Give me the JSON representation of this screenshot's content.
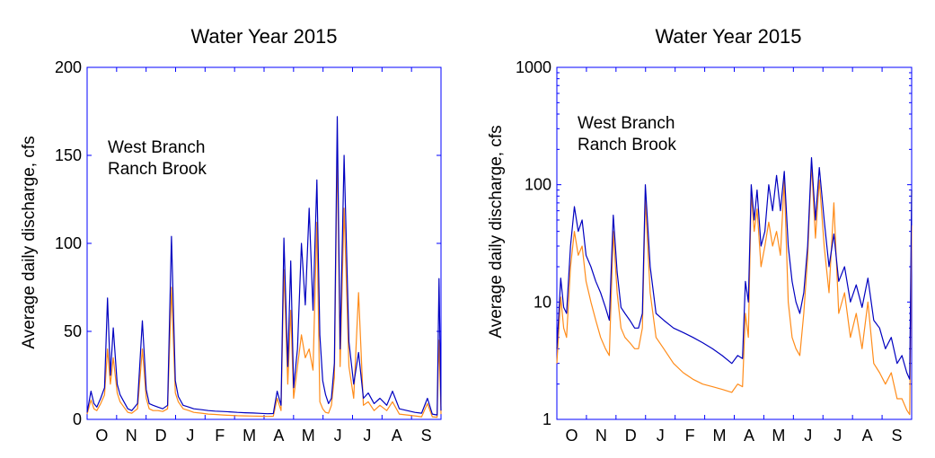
{
  "colors": {
    "west_branch": "#0000c0",
    "ranch_brook": "#ff8c1a",
    "axes": "#0000ff"
  },
  "chart_data": [
    {
      "type": "line",
      "title": "Water Year 2015",
      "ylabel": "Average daily discharge, cfs",
      "yscale": "linear",
      "ylim": [
        0,
        200
      ],
      "yticks": [
        0,
        50,
        100,
        150,
        200
      ],
      "xlim": [
        0,
        365
      ],
      "xtick_labels": [
        "O",
        "N",
        "D",
        "J",
        "F",
        "M",
        "A",
        "M",
        "J",
        "J",
        "A",
        "S"
      ],
      "legend": "upper-left",
      "series": [
        {
          "name": "West Branch",
          "color_key": "west_branch",
          "x": [
            0,
            4,
            7,
            10,
            14,
            18,
            21,
            24,
            27,
            31,
            34,
            38,
            42,
            46,
            52,
            57,
            61,
            64,
            68,
            73,
            78,
            83,
            87,
            91,
            94,
            99,
            105,
            110,
            118,
            125,
            132,
            140,
            147,
            155,
            163,
            171,
            179,
            186,
            192,
            196,
            200,
            203,
            207,
            210,
            213,
            217,
            221,
            225,
            229,
            233,
            237,
            240,
            243,
            246,
            249,
            252,
            255,
            258,
            261,
            265,
            270,
            275,
            280,
            285,
            290,
            296,
            302,
            309,
            315,
            322,
            330,
            338,
            345,
            351,
            356,
            361,
            363,
            365
          ],
          "y": [
            4,
            16,
            9,
            7,
            12,
            18,
            69,
            25,
            52,
            20,
            14,
            10,
            6,
            5,
            9,
            56,
            17,
            9,
            8,
            7,
            6,
            8,
            104,
            22,
            13,
            8,
            7,
            6,
            5.5,
            5,
            4.7,
            4.5,
            4.3,
            4,
            3.8,
            3.6,
            3.4,
            3.2,
            3.3,
            16,
            8,
            103,
            30,
            90,
            18,
            40,
            100,
            65,
            120,
            62,
            136,
            48,
            22,
            14,
            9,
            12,
            32,
            172,
            40,
            150,
            44,
            20,
            38,
            12,
            15,
            9,
            12,
            8,
            16,
            6,
            5,
            4,
            3.5,
            12,
            3,
            2.5,
            80,
            5
          ]
        },
        {
          "name": "Ranch Brook",
          "color_key": "ranch_brook",
          "x": [
            0,
            4,
            7,
            10,
            14,
            18,
            21,
            24,
            27,
            31,
            34,
            38,
            42,
            46,
            52,
            57,
            61,
            64,
            68,
            73,
            78,
            83,
            87,
            91,
            94,
            99,
            105,
            110,
            118,
            125,
            132,
            140,
            147,
            155,
            163,
            171,
            179,
            186,
            192,
            196,
            200,
            203,
            207,
            210,
            213,
            217,
            221,
            225,
            229,
            233,
            237,
            240,
            243,
            246,
            249,
            252,
            255,
            258,
            261,
            265,
            270,
            275,
            280,
            285,
            290,
            296,
            302,
            309,
            315,
            322,
            330,
            338,
            345,
            351,
            356,
            361,
            363,
            365
          ],
          "y": [
            3,
            11,
            6,
            5,
            9,
            14,
            40,
            20,
            35,
            15,
            10,
            7,
            4,
            3.5,
            6,
            40,
            12,
            6,
            5,
            5,
            4.5,
            6,
            75,
            15,
            10,
            6,
            5,
            4,
            3.5,
            3,
            2.8,
            2.5,
            2.3,
            2.1,
            2,
            1.9,
            1.8,
            1.7,
            1.8,
            12,
            5,
            85,
            20,
            62,
            12,
            30,
            48,
            35,
            40,
            28,
            112,
            10,
            6,
            4,
            3.5,
            8,
            24,
            155,
            30,
            120,
            30,
            12,
            72,
            8,
            10,
            5,
            8,
            5,
            10,
            3,
            2.5,
            2,
            1.5,
            9,
            1.5,
            1.2,
            45,
            3
          ]
        }
      ]
    },
    {
      "type": "line",
      "title": "Water Year 2015",
      "ylabel": "Average daily discharge, cfs",
      "yscale": "log",
      "ylim": [
        1,
        1000
      ],
      "yticks": [
        1,
        10,
        100,
        1000
      ],
      "xlim": [
        0,
        365
      ],
      "xtick_labels": [
        "O",
        "N",
        "D",
        "J",
        "F",
        "M",
        "A",
        "M",
        "J",
        "J",
        "A",
        "S"
      ],
      "legend": "upper-left",
      "series": [
        {
          "name": "West Branch",
          "color_key": "west_branch",
          "x": [
            0,
            4,
            7,
            10,
            14,
            18,
            22,
            26,
            30,
            35,
            40,
            45,
            50,
            54,
            58,
            62,
            66,
            70,
            75,
            80,
            84,
            88,
            91,
            96,
            102,
            110,
            120,
            130,
            140,
            150,
            160,
            170,
            180,
            186,
            191,
            194,
            197,
            200,
            203,
            206,
            210,
            214,
            218,
            222,
            226,
            230,
            234,
            238,
            242,
            246,
            250,
            254,
            258,
            262,
            266,
            270,
            275,
            280,
            285,
            290,
            296,
            302,
            308,
            314,
            320,
            326,
            332,
            338,
            344,
            350,
            355,
            360,
            363,
            365
          ],
          "y": [
            4,
            16,
            9,
            8,
            30,
            65,
            40,
            50,
            25,
            20,
            15,
            12,
            9,
            7,
            55,
            18,
            9,
            8,
            7,
            6,
            6,
            8,
            100,
            20,
            8,
            7,
            6,
            5.5,
            5,
            4.5,
            4,
            3.5,
            3,
            3.5,
            3.3,
            15,
            10,
            100,
            50,
            90,
            30,
            40,
            100,
            60,
            120,
            60,
            130,
            30,
            15,
            10,
            8,
            12,
            30,
            170,
            50,
            140,
            50,
            20,
            38,
            15,
            20,
            10,
            14,
            9,
            16,
            7,
            6,
            4,
            5,
            3,
            3.5,
            2.5,
            2.2,
            90
          ]
        },
        {
          "name": "Ranch Brook",
          "color_key": "ranch_brook",
          "x": [
            0,
            4,
            7,
            10,
            14,
            18,
            22,
            26,
            30,
            35,
            40,
            45,
            50,
            54,
            58,
            62,
            66,
            70,
            75,
            80,
            84,
            88,
            91,
            96,
            102,
            110,
            120,
            130,
            140,
            150,
            160,
            170,
            180,
            186,
            191,
            194,
            197,
            200,
            203,
            206,
            210,
            214,
            218,
            222,
            226,
            230,
            234,
            238,
            242,
            246,
            250,
            254,
            258,
            262,
            266,
            270,
            275,
            280,
            285,
            290,
            296,
            302,
            308,
            314,
            320,
            326,
            332,
            338,
            344,
            350,
            355,
            360,
            363,
            365
          ],
          "y": [
            3,
            11,
            6,
            5,
            20,
            40,
            25,
            30,
            15,
            10,
            7,
            5,
            4,
            3.5,
            40,
            12,
            6,
            5,
            4.5,
            4,
            4,
            6,
            75,
            12,
            5,
            4,
            3,
            2.5,
            2.2,
            2,
            1.9,
            1.8,
            1.7,
            2,
            1.9,
            8,
            5,
            85,
            40,
            62,
            20,
            30,
            48,
            30,
            40,
            25,
            110,
            10,
            5,
            4,
            3.5,
            8,
            24,
            150,
            35,
            110,
            30,
            12,
            70,
            8,
            12,
            5,
            8,
            4,
            10,
            3,
            2.5,
            2,
            2.5,
            1.5,
            1.5,
            1.2,
            1.1,
            45
          ]
        }
      ]
    }
  ]
}
